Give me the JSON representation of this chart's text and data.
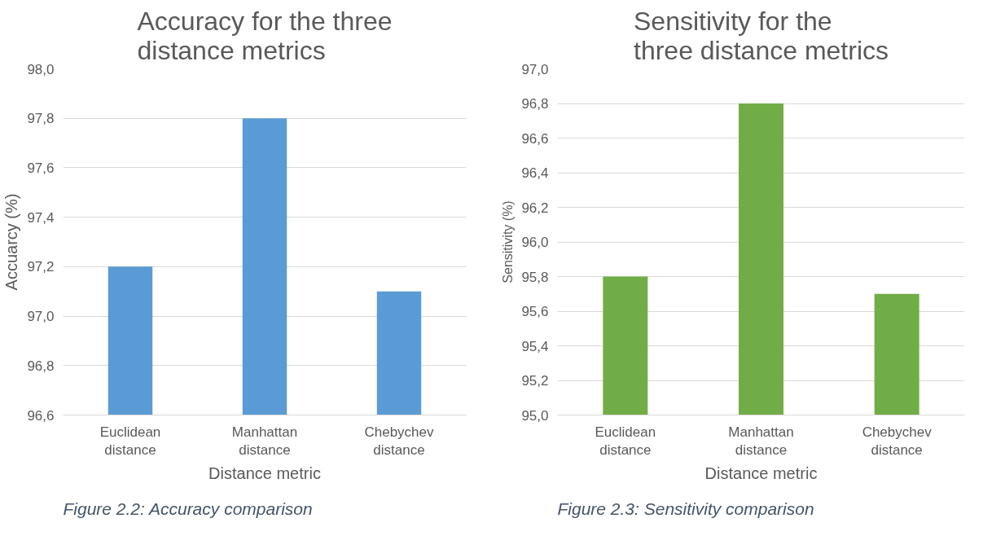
{
  "chart_data": [
    {
      "type": "bar",
      "title": "Accuracy for the three distance metrics",
      "xlabel": "Distance metric",
      "ylabel": "Accuarcy (%)",
      "categories": [
        "Euclidean distance",
        "Manhattan distance",
        "Chebychev distance"
      ],
      "values": [
        97.2,
        97.8,
        97.1
      ],
      "color": "#5b9bd5",
      "ylim": [
        96.6,
        98.0
      ],
      "yticks": [
        {
          "value": 96.6,
          "label": "96,6"
        },
        {
          "value": 96.8,
          "label": "96,8"
        },
        {
          "value": 97.0,
          "label": "97,0"
        },
        {
          "value": 97.2,
          "label": "97,2"
        },
        {
          "value": 97.4,
          "label": "97,4"
        },
        {
          "value": 97.6,
          "label": "97,6"
        },
        {
          "value": 97.8,
          "label": "97,8"
        },
        {
          "value": 98.0,
          "label": "98,0"
        }
      ],
      "grid": "y",
      "annotations": [
        "Figure 2.2: Accuracy comparison"
      ]
    },
    {
      "type": "bar",
      "title": "Sensitivity for the three distance metrics",
      "xlabel": "Distance metric",
      "ylabel": "Sensitivity (%)",
      "categories": [
        "Euclidean distance",
        "Manhattan distance",
        "Chebychev distance"
      ],
      "values": [
        95.8,
        96.8,
        95.7
      ],
      "color": "#70ad47",
      "ylim": [
        95.0,
        97.0
      ],
      "yticks": [
        {
          "value": 95.0,
          "label": "95,0"
        },
        {
          "value": 95.2,
          "label": "95,2"
        },
        {
          "value": 95.4,
          "label": "95,4"
        },
        {
          "value": 95.6,
          "label": "95,6"
        },
        {
          "value": 95.8,
          "label": "95,8"
        },
        {
          "value": 96.0,
          "label": "96,0"
        },
        {
          "value": 96.2,
          "label": "96,2"
        },
        {
          "value": 96.4,
          "label": "96,4"
        },
        {
          "value": 96.6,
          "label": "96,6"
        },
        {
          "value": 96.8,
          "label": "96,8"
        },
        {
          "value": 97.0,
          "label": "97,0"
        }
      ],
      "grid": "y",
      "annotations": [
        "Figure 2.3: Sensitivity comparison"
      ]
    }
  ]
}
